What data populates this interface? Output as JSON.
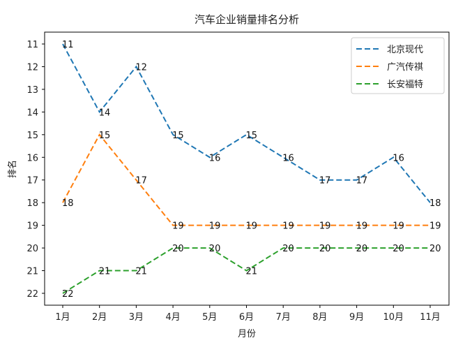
{
  "chart_data": {
    "type": "line",
    "title": "汽车企业销量排名分析",
    "xlabel": "月份",
    "ylabel": "排名",
    "categories": [
      "1月",
      "2月",
      "3月",
      "4月",
      "5月",
      "6月",
      "7月",
      "8月",
      "9月",
      "10月",
      "11月"
    ],
    "ylim": [
      11,
      22
    ],
    "y_inverted": true,
    "yticks": [
      11,
      12,
      13,
      14,
      15,
      16,
      17,
      18,
      19,
      20,
      21,
      22
    ],
    "grid": false,
    "legend_position": "top-right",
    "line_style": "dashed",
    "series": [
      {
        "name": "北京现代",
        "color": "#1f77b4",
        "values": [
          11,
          14,
          12,
          15,
          16,
          15,
          16,
          17,
          17,
          16,
          18
        ]
      },
      {
        "name": "广汽传祺",
        "color": "#ff7f0e",
        "values": [
          18,
          15,
          17,
          19,
          19,
          19,
          19,
          19,
          19,
          19,
          19
        ]
      },
      {
        "name": "长安福特",
        "color": "#2ca02c",
        "values": [
          22,
          21,
          21,
          20,
          20,
          21,
          20,
          20,
          20,
          20,
          20
        ]
      }
    ]
  }
}
